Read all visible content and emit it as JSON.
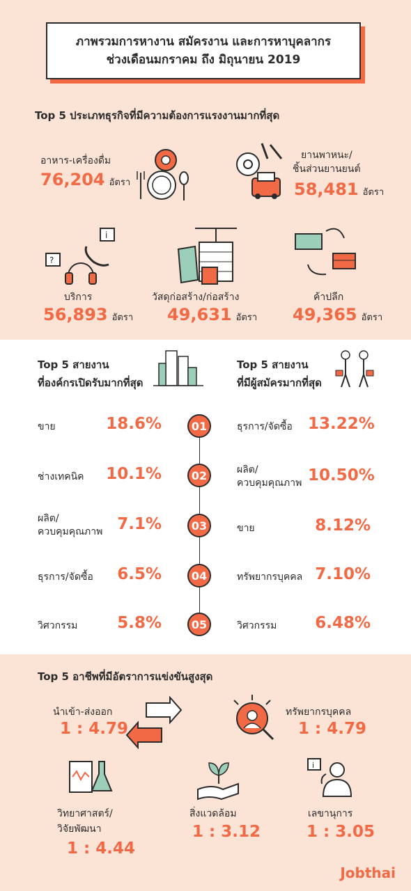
{
  "title": {
    "line1": "ภาพรวมการหางาน สมัครงาน และการหาบุคลากร",
    "line2": "ช่วงเดือนมกราคม ถึง มิถุนายน 2019"
  },
  "section1": {
    "heading": "Top 5 ประเภทธุรกิจที่มีความต้องการแรงงานมากที่สุด",
    "unit": "อัตรา",
    "items": [
      {
        "label": "อาหาร-เครื่องดื่ม",
        "value": "76,204",
        "icon": "dining-icon"
      },
      {
        "label1": "ยานพาหนะ/",
        "label2": "ชิ้นส่วนยานยนต์",
        "value": "58,481",
        "icon": "car-parts-icon"
      },
      {
        "label": "บริการ",
        "value": "56,893",
        "icon": "service-icon"
      },
      {
        "label": "วัสดุก่อสร้าง/ก่อสร้าง",
        "value": "49,631",
        "icon": "construction-icon"
      },
      {
        "label": "ค้าปลีก",
        "value": "49,365",
        "icon": "retail-icon"
      }
    ]
  },
  "section2": {
    "left_heading1": "Top 5 สายงาน",
    "left_heading2": "ที่องค์กรเปิดรับมากที่สุด",
    "right_heading1": "Top 5 สายงาน",
    "right_heading2": "ที่มีผู้สมัครมากที่สุด",
    "ranks": [
      "01",
      "02",
      "03",
      "04",
      "05"
    ],
    "left": [
      {
        "label1": "ขาย",
        "label2": "",
        "pct": "18.6%"
      },
      {
        "label1": "ช่างเทคนิค",
        "label2": "",
        "pct": "10.1%"
      },
      {
        "label1": "ผลิต/",
        "label2": "ควบคุมคุณภาพ",
        "pct": "7.1%"
      },
      {
        "label1": "ธุรการ/จัดซื้อ",
        "label2": "",
        "pct": "6.5%"
      },
      {
        "label1": "วิศวกรรม",
        "label2": "",
        "pct": "5.8%"
      }
    ],
    "right": [
      {
        "label1": "ธุรการ/จัดซื้อ",
        "label2": "",
        "pct": "13.22%"
      },
      {
        "label1": "ผลิต/",
        "label2": "ควบคุมคุณภาพ",
        "pct": "10.50%"
      },
      {
        "label1": "ขาย",
        "label2": "",
        "pct": "8.12%"
      },
      {
        "label1": "ทรัพยากรบุคคล",
        "label2": "",
        "pct": "7.10%"
      },
      {
        "label1": "วิศวกรรม",
        "label2": "",
        "pct": "6.48%"
      }
    ]
  },
  "section3": {
    "heading": "Top 5 อาชีพที่มีอัตราการแข่งขันสูงสุด",
    "items": [
      {
        "label1": "นำเข้า-ส่งออก",
        "label2": "",
        "ratio": "1 : 4.79",
        "icon": "import-export-icon"
      },
      {
        "label1": "ทรัพยากรบุคคล",
        "label2": "",
        "ratio": "1 : 4.79",
        "icon": "hr-search-icon"
      },
      {
        "label1": "วิทยาศาสตร์/",
        "label2": "วิจัยพัฒนา",
        "ratio": "1 : 4.44",
        "icon": "science-icon"
      },
      {
        "label1": "สิ่งแวดล้อม",
        "label2": "",
        "ratio": "1 : 3.12",
        "icon": "environment-icon"
      },
      {
        "label1": "เลขานุการ",
        "label2": "",
        "ratio": "1 : 3.05",
        "icon": "secretary-icon"
      }
    ]
  },
  "logo": "Jobthai",
  "colors": {
    "accent": "#f26a45",
    "bg_peach": "#fbe3d6",
    "text": "#2b2b2b"
  }
}
